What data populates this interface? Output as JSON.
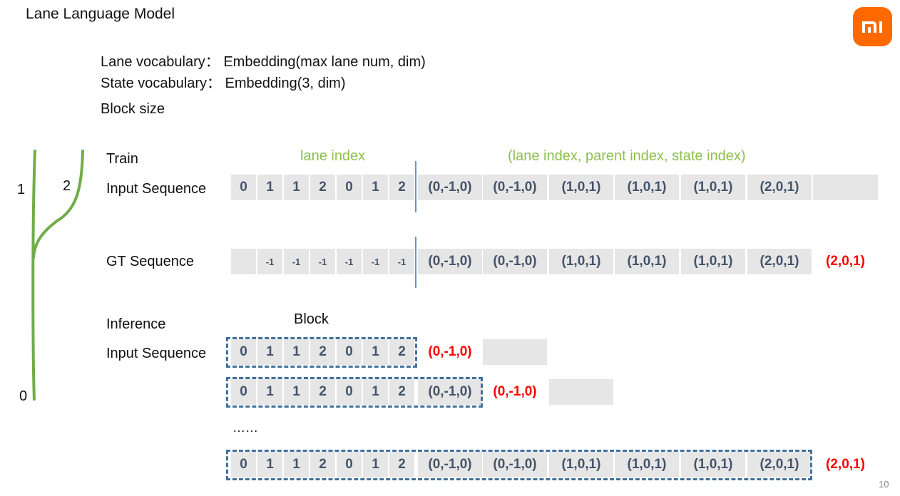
{
  "title": "Lane Language Model",
  "vocab": {
    "lane": "Lane vocabulary：  Embedding(max lane num, dim)",
    "state": "State vocabulary：  Embedding(3, dim)",
    "block_size": "Block size"
  },
  "tree_labels": {
    "n0": "0",
    "n1": "1",
    "n2": "2"
  },
  "headers": {
    "lane_index": "lane index",
    "triplet": "(lane index, parent index, state index)"
  },
  "labels": {
    "train": "Train",
    "input_seq": "Input Sequence",
    "gt_seq": "GT Sequence",
    "inference": "Inference",
    "input_seq2": "Input Sequence",
    "block": "Block",
    "ellipsis": "……"
  },
  "rows": {
    "train_input": {
      "tokens": [
        "0",
        "1",
        "1",
        "2",
        "0",
        "1",
        "2"
      ],
      "pairs": [
        "(0,-1,0)",
        "(0,-1,0)",
        "(1,0,1)",
        "(1,0,1)",
        "(1,0,1)",
        "(2,0,1)",
        ""
      ]
    },
    "gt": {
      "tokens": [
        "",
        "-1",
        "-1",
        "-1",
        "-1",
        "-1",
        "-1"
      ],
      "pairs": [
        "(0,-1,0)",
        "(0,-1,0)",
        "(1,0,1)",
        "(1,0,1)",
        "(1,0,1)",
        "(2,0,1)",
        "(2,0,1)"
      ]
    },
    "inf1": {
      "tokens": [
        "0",
        "1",
        "1",
        "2",
        "0",
        "1",
        "2"
      ],
      "pairs": [
        "(0,-1,0)",
        ""
      ]
    },
    "inf2": {
      "tokens": [
        "0",
        "1",
        "1",
        "2",
        "0",
        "1",
        "2"
      ],
      "pairs": [
        "(0,-1,0)",
        "(0,-1,0)",
        ""
      ]
    },
    "inf3": {
      "tokens": [
        "0",
        "1",
        "1",
        "2",
        "0",
        "1",
        "2"
      ],
      "pairs": [
        "(0,-1,0)",
        "(0,-1,0)",
        "(1,0,1)",
        "(1,0,1)",
        "(1,0,1)",
        "(2,0,1)",
        "(2,0,1)"
      ]
    }
  },
  "colors": {
    "green": "#8cc04c",
    "cell_bg": "#e6e6e6",
    "cell_text": "#44546a",
    "red": "#ff0000",
    "block_border": "#41719c",
    "logo": "#ff6900"
  },
  "page_number": "10"
}
